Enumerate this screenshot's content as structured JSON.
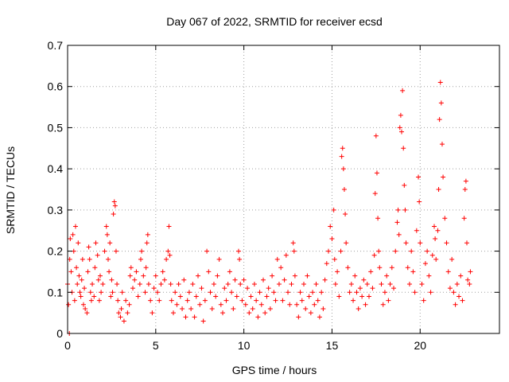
{
  "chart_data": {
    "type": "scatter",
    "title": "Day 067 of 2022, SRMTID for receiver ecsd",
    "xlabel": "GPS time / hours",
    "ylabel": "SRMTID / TECUs",
    "xlim": [
      0,
      24.5
    ],
    "ylim": [
      0,
      0.7
    ],
    "xticks": [
      0,
      5,
      10,
      15,
      20
    ],
    "xtick_labels": [
      "0",
      "5",
      "10",
      "15",
      "20"
    ],
    "yticks": [
      0,
      0.1,
      0.2,
      0.3,
      0.4,
      0.5,
      0.6,
      0.7
    ],
    "ytick_labels": [
      "0",
      "0.1",
      "0.2",
      "0.3",
      "0.4",
      "0.5",
      "0.6",
      "0.7"
    ],
    "grid": true,
    "marker": "plus",
    "marker_color": "#ff0000",
    "series": [
      {
        "name": "SRMTID",
        "points": [
          [
            0.0,
            0.12
          ],
          [
            0.05,
            0.07
          ],
          [
            0.1,
            0.0
          ],
          [
            0.12,
            0.18
          ],
          [
            0.15,
            0.23
          ],
          [
            0.2,
            0.15
          ],
          [
            0.25,
            0.1
          ],
          [
            0.3,
            0.24
          ],
          [
            0.35,
            0.2
          ],
          [
            0.4,
            0.08
          ],
          [
            0.45,
            0.26
          ],
          [
            0.5,
            0.16
          ],
          [
            0.55,
            0.12
          ],
          [
            0.6,
            0.22
          ],
          [
            0.65,
            0.14
          ],
          [
            0.7,
            0.1
          ],
          [
            0.75,
            0.09
          ],
          [
            0.8,
            0.13
          ],
          [
            0.85,
            0.18
          ],
          [
            0.9,
            0.07
          ],
          [
            0.95,
            0.11
          ],
          [
            1.0,
            0.06
          ],
          [
            1.1,
            0.05
          ],
          [
            1.15,
            0.15
          ],
          [
            1.2,
            0.21
          ],
          [
            1.25,
            0.18
          ],
          [
            1.3,
            0.1
          ],
          [
            1.35,
            0.08
          ],
          [
            1.4,
            0.12
          ],
          [
            1.5,
            0.09
          ],
          [
            1.55,
            0.16
          ],
          [
            1.6,
            0.22
          ],
          [
            1.7,
            0.19
          ],
          [
            1.75,
            0.13
          ],
          [
            1.8,
            0.08
          ],
          [
            1.85,
            0.14
          ],
          [
            1.9,
            0.1
          ],
          [
            2.0,
            0.12
          ],
          [
            2.1,
            0.2
          ],
          [
            2.2,
            0.26
          ],
          [
            2.25,
            0.24
          ],
          [
            2.3,
            0.18
          ],
          [
            2.35,
            0.15
          ],
          [
            2.4,
            0.22
          ],
          [
            2.45,
            0.09
          ],
          [
            2.5,
            0.13
          ],
          [
            2.55,
            0.1
          ],
          [
            2.6,
            0.29
          ],
          [
            2.65,
            0.32
          ],
          [
            2.7,
            0.31
          ],
          [
            2.75,
            0.2
          ],
          [
            2.8,
            0.12
          ],
          [
            2.85,
            0.08
          ],
          [
            2.9,
            0.05
          ],
          [
            3.0,
            0.04
          ],
          [
            3.05,
            0.06
          ],
          [
            3.1,
            0.1
          ],
          [
            3.2,
            0.03
          ],
          [
            3.3,
            0.08
          ],
          [
            3.4,
            0.05
          ],
          [
            3.5,
            0.07
          ],
          [
            3.55,
            0.14
          ],
          [
            3.6,
            0.16
          ],
          [
            3.7,
            0.11
          ],
          [
            3.8,
            0.13
          ],
          [
            3.9,
            0.15
          ],
          [
            4.0,
            0.09
          ],
          [
            4.1,
            0.12
          ],
          [
            4.15,
            0.18
          ],
          [
            4.2,
            0.2
          ],
          [
            4.3,
            0.14
          ],
          [
            4.4,
            0.1
          ],
          [
            4.45,
            0.16
          ],
          [
            4.5,
            0.22
          ],
          [
            4.55,
            0.24
          ],
          [
            4.6,
            0.12
          ],
          [
            4.7,
            0.08
          ],
          [
            4.8,
            0.05
          ],
          [
            4.9,
            0.11
          ],
          [
            5.0,
            0.14
          ],
          [
            5.1,
            0.1
          ],
          [
            5.2,
            0.08
          ],
          [
            5.3,
            0.12
          ],
          [
            5.4,
            0.15
          ],
          [
            5.5,
            0.13
          ],
          [
            5.6,
            0.18
          ],
          [
            5.7,
            0.2
          ],
          [
            5.75,
            0.26
          ],
          [
            5.8,
            0.19
          ],
          [
            5.85,
            0.12
          ],
          [
            5.9,
            0.08
          ],
          [
            6.0,
            0.05
          ],
          [
            6.1,
            0.1
          ],
          [
            6.2,
            0.07
          ],
          [
            6.3,
            0.12
          ],
          [
            6.4,
            0.09
          ],
          [
            6.5,
            0.06
          ],
          [
            6.6,
            0.13
          ],
          [
            6.7,
            0.04
          ],
          [
            6.8,
            0.08
          ],
          [
            6.9,
            0.1
          ],
          [
            7.0,
            0.06
          ],
          [
            7.1,
            0.12
          ],
          [
            7.2,
            0.04
          ],
          [
            7.3,
            0.09
          ],
          [
            7.4,
            0.14
          ],
          [
            7.5,
            0.07
          ],
          [
            7.6,
            0.11
          ],
          [
            7.7,
            0.03
          ],
          [
            7.8,
            0.08
          ],
          [
            7.9,
            0.2
          ],
          [
            8.0,
            0.15
          ],
          [
            8.1,
            0.1
          ],
          [
            8.2,
            0.06
          ],
          [
            8.3,
            0.12
          ],
          [
            8.4,
            0.09
          ],
          [
            8.5,
            0.14
          ],
          [
            8.6,
            0.18
          ],
          [
            8.7,
            0.07
          ],
          [
            8.8,
            0.05
          ],
          [
            8.9,
            0.11
          ],
          [
            9.0,
            0.08
          ],
          [
            9.1,
            0.12
          ],
          [
            9.2,
            0.15
          ],
          [
            9.3,
            0.1
          ],
          [
            9.4,
            0.06
          ],
          [
            9.5,
            0.13
          ],
          [
            9.6,
            0.09
          ],
          [
            9.7,
            0.2
          ],
          [
            9.75,
            0.18
          ],
          [
            9.8,
            0.12
          ],
          [
            9.9,
            0.08
          ],
          [
            10.0,
            0.13
          ],
          [
            10.1,
            0.07
          ],
          [
            10.2,
            0.11
          ],
          [
            10.3,
            0.05
          ],
          [
            10.4,
            0.09
          ],
          [
            10.5,
            0.06
          ],
          [
            10.6,
            0.12
          ],
          [
            10.7,
            0.08
          ],
          [
            10.8,
            0.04
          ],
          [
            10.9,
            0.1
          ],
          [
            11.0,
            0.07
          ],
          [
            11.1,
            0.13
          ],
          [
            11.2,
            0.05
          ],
          [
            11.3,
            0.09
          ],
          [
            11.4,
            0.11
          ],
          [
            11.5,
            0.06
          ],
          [
            11.6,
            0.14
          ],
          [
            11.7,
            0.1
          ],
          [
            11.8,
            0.08
          ],
          [
            11.9,
            0.18
          ],
          [
            12.0,
            0.12
          ],
          [
            12.1,
            0.16
          ],
          [
            12.2,
            0.08
          ],
          [
            12.3,
            0.13
          ],
          [
            12.4,
            0.19
          ],
          [
            12.5,
            0.1
          ],
          [
            12.6,
            0.07
          ],
          [
            12.7,
            0.12
          ],
          [
            12.8,
            0.22
          ],
          [
            12.85,
            0.2
          ],
          [
            12.9,
            0.14
          ],
          [
            13.0,
            0.07
          ],
          [
            13.1,
            0.04
          ],
          [
            13.2,
            0.1
          ],
          [
            13.3,
            0.08
          ],
          [
            13.4,
            0.12
          ],
          [
            13.5,
            0.06
          ],
          [
            13.6,
            0.14
          ],
          [
            13.7,
            0.09
          ],
          [
            13.8,
            0.05
          ],
          [
            13.9,
            0.1
          ],
          [
            14.0,
            0.07
          ],
          [
            14.1,
            0.12
          ],
          [
            14.2,
            0.08
          ],
          [
            14.3,
            0.04
          ],
          [
            14.4,
            0.1
          ],
          [
            14.5,
            0.06
          ],
          [
            14.6,
            0.13
          ],
          [
            14.7,
            0.17
          ],
          [
            14.8,
            0.2
          ],
          [
            14.9,
            0.26
          ],
          [
            15.0,
            0.23
          ],
          [
            15.1,
            0.3
          ],
          [
            15.15,
            0.18
          ],
          [
            15.2,
            0.12
          ],
          [
            15.3,
            0.15
          ],
          [
            15.4,
            0.09
          ],
          [
            15.5,
            0.2
          ],
          [
            15.55,
            0.43
          ],
          [
            15.6,
            0.45
          ],
          [
            15.65,
            0.4
          ],
          [
            15.7,
            0.35
          ],
          [
            15.75,
            0.29
          ],
          [
            15.8,
            0.22
          ],
          [
            15.9,
            0.16
          ],
          [
            16.0,
            0.1
          ],
          [
            16.1,
            0.12
          ],
          [
            16.2,
            0.08
          ],
          [
            16.3,
            0.14
          ],
          [
            16.4,
            0.1
          ],
          [
            16.5,
            0.06
          ],
          [
            16.6,
            0.11
          ],
          [
            16.7,
            0.09
          ],
          [
            16.8,
            0.13
          ],
          [
            16.9,
            0.07
          ],
          [
            17.0,
            0.12
          ],
          [
            17.1,
            0.09
          ],
          [
            17.2,
            0.15
          ],
          [
            17.3,
            0.11
          ],
          [
            17.4,
            0.19
          ],
          [
            17.45,
            0.34
          ],
          [
            17.5,
            0.48
          ],
          [
            17.55,
            0.39
          ],
          [
            17.6,
            0.28
          ],
          [
            17.65,
            0.2
          ],
          [
            17.7,
            0.16
          ],
          [
            17.8,
            0.12
          ],
          [
            17.9,
            0.07
          ],
          [
            18.0,
            0.1
          ],
          [
            18.1,
            0.14
          ],
          [
            18.2,
            0.08
          ],
          [
            18.3,
            0.12
          ],
          [
            18.4,
            0.16
          ],
          [
            18.5,
            0.11
          ],
          [
            18.6,
            0.2
          ],
          [
            18.7,
            0.27
          ],
          [
            18.75,
            0.3
          ],
          [
            18.8,
            0.24
          ],
          [
            18.85,
            0.5
          ],
          [
            18.9,
            0.53
          ],
          [
            18.95,
            0.49
          ],
          [
            19.0,
            0.59
          ],
          [
            19.05,
            0.45
          ],
          [
            19.1,
            0.36
          ],
          [
            19.15,
            0.3
          ],
          [
            19.2,
            0.22
          ],
          [
            19.3,
            0.16
          ],
          [
            19.4,
            0.12
          ],
          [
            19.5,
            0.2
          ],
          [
            19.6,
            0.15
          ],
          [
            19.7,
            0.1
          ],
          [
            19.8,
            0.25
          ],
          [
            19.9,
            0.38
          ],
          [
            19.95,
            0.32
          ],
          [
            20.0,
            0.22
          ],
          [
            20.1,
            0.12
          ],
          [
            20.2,
            0.08
          ],
          [
            20.3,
            0.17
          ],
          [
            20.4,
            0.2
          ],
          [
            20.5,
            0.14
          ],
          [
            20.6,
            0.1
          ],
          [
            20.7,
            0.19
          ],
          [
            20.8,
            0.26
          ],
          [
            20.85,
            0.23
          ],
          [
            20.9,
            0.18
          ],
          [
            21.0,
            0.25
          ],
          [
            21.05,
            0.35
          ],
          [
            21.1,
            0.52
          ],
          [
            21.15,
            0.61
          ],
          [
            21.2,
            0.56
          ],
          [
            21.25,
            0.46
          ],
          [
            21.3,
            0.38
          ],
          [
            21.4,
            0.28
          ],
          [
            21.5,
            0.22
          ],
          [
            21.6,
            0.15
          ],
          [
            21.7,
            0.11
          ],
          [
            21.8,
            0.18
          ],
          [
            21.9,
            0.1
          ],
          [
            22.0,
            0.07
          ],
          [
            22.1,
            0.12
          ],
          [
            22.2,
            0.09
          ],
          [
            22.3,
            0.14
          ],
          [
            22.4,
            0.08
          ],
          [
            22.5,
            0.28
          ],
          [
            22.55,
            0.35
          ],
          [
            22.6,
            0.37
          ],
          [
            22.65,
            0.22
          ],
          [
            22.7,
            0.13
          ],
          [
            22.8,
            0.12
          ],
          [
            22.85,
            0.15
          ]
        ]
      }
    ]
  }
}
